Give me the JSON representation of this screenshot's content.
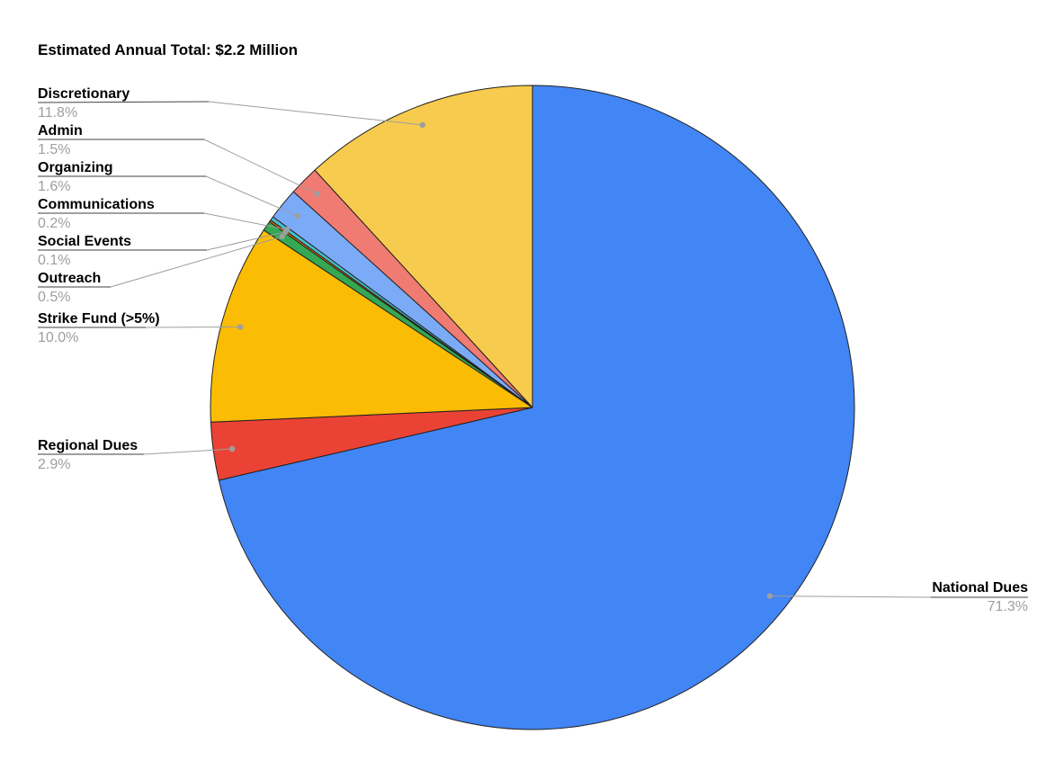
{
  "title": "Estimated Annual Total: $2.2 Million",
  "chart_data": {
    "type": "pie",
    "title": "Estimated Annual Total: $2.2 Million",
    "start_angle_deg": 0,
    "direction": "clockwise",
    "legend_position": "outside-labels-with-leader-lines",
    "background_color": "#ffffff",
    "slice_border_color": "#212121",
    "leader_line_color": "#9e9e9e",
    "label_underline_color": "#424242",
    "label_name_color": "#000000",
    "pct_label_color": "#9e9e9e",
    "slices": [
      {
        "label": "National Dues",
        "pct": "71.3%",
        "value": 71.3,
        "color": "#4285F4"
      },
      {
        "label": "Regional Dues",
        "pct": "2.9%",
        "value": 2.9,
        "color": "#EA4335"
      },
      {
        "label": "Strike Fund (>5%)",
        "pct": "10.0%",
        "value": 10.0,
        "color": "#FBBC04"
      },
      {
        "label": "Outreach",
        "pct": "0.5%",
        "value": 0.5,
        "color": "#34A853"
      },
      {
        "label": "Social Events",
        "pct": "0.1%",
        "value": 0.1,
        "color": "#FF6D01"
      },
      {
        "label": "Communications",
        "pct": "0.2%",
        "value": 0.2,
        "color": "#46BDC6"
      },
      {
        "label": "Organizing",
        "pct": "1.6%",
        "value": 1.6,
        "color": "#7BAAF7"
      },
      {
        "label": "Admin",
        "pct": "1.5%",
        "value": 1.5,
        "color": "#F07B72"
      },
      {
        "label": "Discretionary",
        "pct": "11.8%",
        "value": 11.8,
        "color": "#F7CB4D"
      }
    ]
  }
}
